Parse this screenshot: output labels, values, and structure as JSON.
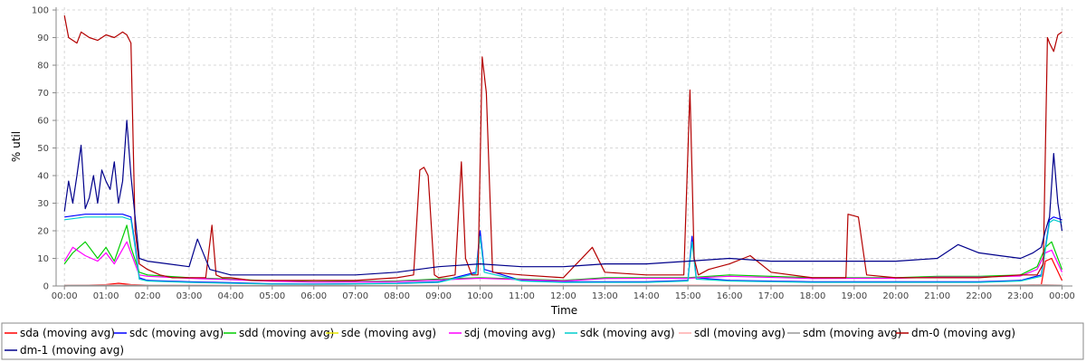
{
  "chart_data": {
    "type": "line",
    "title": "",
    "xlabel": "Time",
    "ylabel": "% util",
    "x_ticks": [
      "00:00",
      "01:00",
      "02:00",
      "03:00",
      "04:00",
      "05:00",
      "06:00",
      "07:00",
      "08:00",
      "09:00",
      "10:00",
      "11:00",
      "12:00",
      "13:00",
      "14:00",
      "15:00",
      "16:00",
      "17:00",
      "18:00",
      "19:00",
      "20:00",
      "21:00",
      "22:00",
      "23:00",
      "00:00"
    ],
    "xlim": [
      -0.2,
      24.25
    ],
    "y_ticks": [
      0,
      10,
      20,
      30,
      40,
      50,
      60,
      70,
      80,
      90,
      100
    ],
    "ylim": [
      0,
      101
    ],
    "grid": true,
    "legend_position": "bottom",
    "series": [
      {
        "name": "sda (moving avg)",
        "color": "#ff0000",
        "x": [
          0,
          1,
          1.3,
          1.6,
          2,
          3,
          5,
          8,
          10,
          12,
          15,
          18,
          21,
          23,
          23.5,
          23.6,
          23.75,
          24
        ],
        "y": [
          0,
          0.5,
          1,
          0.5,
          0.3,
          0.2,
          0.1,
          0.1,
          0.2,
          0.1,
          0.2,
          0.1,
          0.1,
          0.2,
          0.5,
          9,
          10,
          2
        ]
      },
      {
        "name": "sdc (moving avg)",
        "color": "#0000ff",
        "x": [
          0,
          0.5,
          1,
          1.4,
          1.6,
          1.7,
          1.8,
          2,
          3,
          4,
          5,
          6,
          8,
          9,
          9.9,
          10,
          10.1,
          11,
          12,
          13,
          14,
          15,
          15.1,
          15.2,
          16,
          18,
          19,
          20,
          21,
          22,
          23,
          23.5,
          23.7,
          23.8,
          24
        ],
        "y": [
          25,
          26,
          26,
          26,
          25,
          15,
          3,
          2,
          1.5,
          1.2,
          0.8,
          0.7,
          1,
          1.5,
          5,
          20,
          6,
          2,
          1.5,
          1.5,
          1.5,
          2,
          18,
          3,
          2,
          1.5,
          1.5,
          1.5,
          1.5,
          1.5,
          2,
          4,
          24,
          25,
          24
        ]
      },
      {
        "name": "sdd (moving avg)",
        "color": "#00cc00",
        "x": [
          0,
          0.2,
          0.5,
          0.8,
          1,
          1.2,
          1.5,
          1.6,
          1.8,
          2,
          3,
          4,
          5,
          6,
          8,
          9,
          10,
          11,
          12,
          13,
          14,
          15,
          16,
          18,
          19,
          20,
          21,
          22,
          23,
          23.4,
          23.6,
          23.75,
          24
        ],
        "y": [
          8,
          12,
          16,
          10,
          14,
          9,
          22,
          14,
          5,
          4,
          3,
          2.5,
          1.8,
          1.5,
          1.8,
          2.5,
          3,
          2.5,
          2,
          3,
          3,
          3,
          4,
          3,
          3,
          3,
          3.5,
          3.5,
          4,
          7,
          14,
          16,
          6
        ]
      },
      {
        "name": "sde (moving avg)",
        "color": "#e6e600",
        "x": [
          0,
          1,
          2,
          4,
          6,
          8,
          10,
          12,
          14,
          16,
          18,
          20,
          22,
          23.5,
          24
        ],
        "y": [
          0.1,
          0.1,
          0.1,
          0.1,
          0.1,
          0.1,
          0.1,
          0.1,
          0.1,
          0.1,
          0.1,
          0.1,
          0.1,
          0.2,
          0.1
        ]
      },
      {
        "name": "sdj (moving avg)",
        "color": "#ff00ff",
        "x": [
          0,
          0.2,
          0.5,
          0.8,
          1,
          1.2,
          1.5,
          1.6,
          1.8,
          2,
          3,
          4,
          5,
          6,
          8,
          9,
          10,
          11,
          12,
          13,
          14,
          15,
          16,
          18,
          19,
          20,
          21,
          22,
          23,
          23.4,
          23.6,
          23.75,
          24
        ],
        "y": [
          9,
          14,
          11,
          9,
          12,
          8,
          16,
          12,
          4,
          3.5,
          2.8,
          2.3,
          1.7,
          1.4,
          1.6,
          2.2,
          2.8,
          2.3,
          1.8,
          2.7,
          2.8,
          2.8,
          3.5,
          2.7,
          2.8,
          2.8,
          3.2,
          3.2,
          3.6,
          6,
          12,
          13,
          5
        ]
      },
      {
        "name": "sdk (moving avg)",
        "color": "#00cccc",
        "x": [
          0,
          0.5,
          1,
          1.4,
          1.6,
          1.7,
          1.8,
          2,
          3,
          4,
          5,
          6,
          8,
          9,
          9.9,
          10,
          10.1,
          11,
          12,
          13,
          14,
          15,
          15.1,
          15.2,
          16,
          18,
          19,
          20,
          21,
          22,
          23,
          23.5,
          23.7,
          23.8,
          24
        ],
        "y": [
          24,
          25,
          25,
          25,
          24,
          14,
          2.5,
          1.8,
          1.3,
          1,
          0.7,
          0.6,
          0.9,
          1.3,
          4.5,
          18,
          5,
          1.8,
          1.3,
          1.3,
          1.3,
          1.8,
          16,
          2.5,
          1.8,
          1.3,
          1.3,
          1.3,
          1.3,
          1.3,
          1.8,
          3.5,
          23,
          24,
          23
        ]
      },
      {
        "name": "sdl (moving avg)",
        "color": "#ffaaaa",
        "x": [
          0,
          1,
          2,
          4,
          6,
          8,
          10,
          12,
          14,
          16,
          18,
          20,
          22,
          23.5,
          24
        ],
        "y": [
          0.3,
          0.4,
          0.3,
          0.2,
          0.2,
          0.2,
          0.3,
          0.2,
          0.2,
          0.2,
          0.2,
          0.2,
          0.2,
          0.5,
          0.3
        ]
      },
      {
        "name": "sdm (moving avg)",
        "color": "#999999",
        "x": [
          0,
          1,
          2,
          4,
          6,
          8,
          10,
          12,
          14,
          16,
          18,
          20,
          22,
          23.5,
          24
        ],
        "y": [
          0.2,
          0.2,
          0.2,
          0.1,
          0.1,
          0.1,
          0.2,
          0.1,
          0.1,
          0.1,
          0.1,
          0.1,
          0.1,
          0.3,
          0.2
        ]
      },
      {
        "name": "dm-0 (moving avg)",
        "color": "#b30000",
        "x": [
          0,
          0.1,
          0.3,
          0.4,
          0.6,
          0.8,
          1,
          1.2,
          1.4,
          1.5,
          1.6,
          1.7,
          1.8,
          2,
          2.3,
          2.6,
          3,
          3.4,
          3.55,
          3.65,
          3.8,
          4,
          4.5,
          5,
          6,
          7,
          8,
          8.4,
          8.55,
          8.65,
          8.75,
          8.9,
          9,
          9.4,
          9.55,
          9.65,
          9.8,
          9.95,
          10.05,
          10.15,
          10.3,
          11,
          12,
          12.7,
          13,
          14,
          14.9,
          15.05,
          15.15,
          15.25,
          15.5,
          16,
          16.5,
          17,
          18,
          18.8,
          18.85,
          19.1,
          19.3,
          20,
          21,
          22,
          23,
          23.4,
          23.55,
          23.65,
          23.7,
          23.8,
          23.9,
          24
        ],
        "y": [
          98,
          90,
          88,
          92,
          90,
          89,
          91,
          90,
          92,
          91,
          88,
          20,
          8,
          6,
          4,
          3,
          3,
          3,
          22,
          4,
          3,
          3,
          2,
          2,
          2,
          2,
          3,
          4,
          42,
          43,
          40,
          4,
          3,
          4,
          45,
          10,
          4,
          4,
          83,
          70,
          5,
          4,
          3,
          14,
          5,
          4,
          4,
          71,
          10,
          4,
          6,
          8,
          11,
          5,
          3,
          3,
          26,
          25,
          4,
          3,
          3,
          3,
          4,
          4,
          8,
          90,
          88,
          85,
          91,
          92
        ]
      },
      {
        "name": "dm-1 (moving avg)",
        "color": "#00008b",
        "x": [
          0,
          0.1,
          0.2,
          0.3,
          0.4,
          0.5,
          0.6,
          0.7,
          0.8,
          0.9,
          1,
          1.1,
          1.2,
          1.3,
          1.4,
          1.5,
          1.6,
          1.7,
          1.8,
          2,
          2.5,
          3,
          3.2,
          3.5,
          4,
          5,
          6,
          7,
          8,
          9,
          10,
          11,
          12,
          13,
          14,
          15,
          16,
          17,
          18,
          19,
          20,
          21,
          21.5,
          22,
          22.5,
          23,
          23.3,
          23.5,
          23.6,
          23.7,
          23.8,
          23.9,
          24
        ],
        "y": [
          27,
          38,
          30,
          40,
          51,
          28,
          32,
          40,
          30,
          42,
          38,
          35,
          45,
          30,
          38,
          60,
          40,
          25,
          10,
          9,
          8,
          7,
          17,
          6,
          4,
          4,
          4,
          4,
          5,
          7,
          8,
          7,
          7,
          8,
          8,
          9,
          10,
          9,
          9,
          9,
          9,
          10,
          15,
          12,
          11,
          10,
          12,
          14,
          20,
          25,
          48,
          30,
          20
        ]
      }
    ]
  }
}
